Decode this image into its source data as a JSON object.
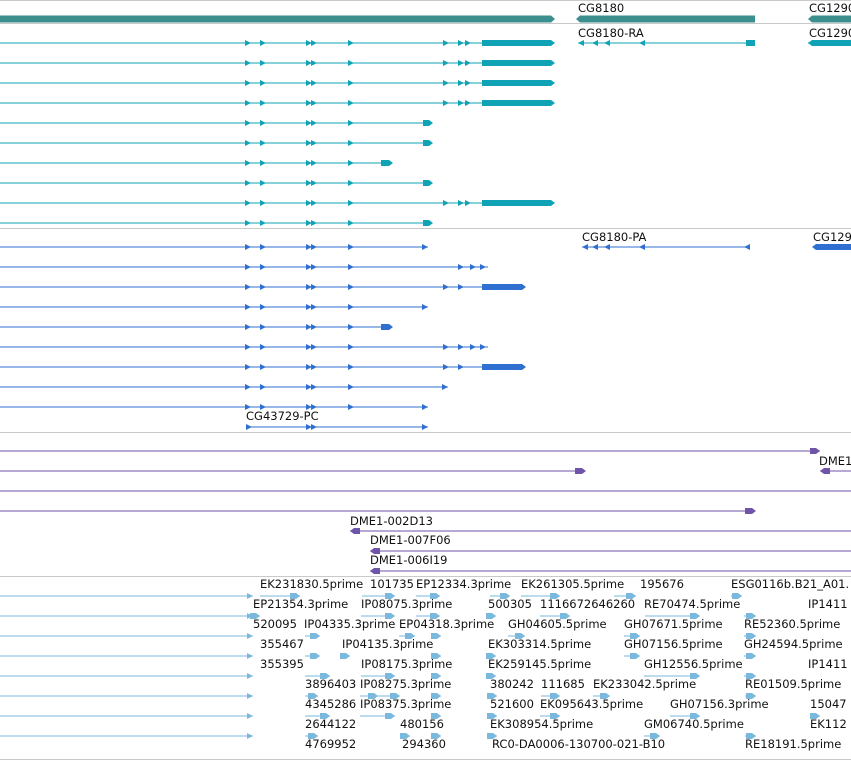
{
  "colors": {
    "gene": "#3b8f8f",
    "rna": "#0fa3b5",
    "protein": "#2f6fd0",
    "clone": "#6e55a8",
    "est": "#7ab8de",
    "separator": "#c9c9c9"
  },
  "tracks": {
    "genes": {
      "labels": [
        "CG8180",
        "CG1290"
      ]
    },
    "transcripts": {
      "labels": [
        "CG8180-RA",
        "CG1290"
      ]
    },
    "proteins": {
      "labels": [
        "CG8180-PA",
        "CG129",
        "CG43729-PC"
      ]
    },
    "clones": {
      "labels": [
        "DME1",
        "DME1-002D13",
        "DME1-007F06",
        "DME1-006I19"
      ]
    },
    "ests": {
      "labels": [
        "EK231830.5prime",
        "101735",
        "EP12334.3prime",
        "EK261305.5prime",
        "195676",
        "ESG0116b.B21_A01.",
        "EP21354.3prime",
        "IP08075.3prime",
        "500305",
        "1116672646260",
        "RE70474.5prime",
        "IP1411",
        "520095",
        "IP04335.3prime",
        "EP04318.3prime",
        "GH04605.5prime",
        "GH07671.5prime",
        "RE52360.5prime",
        "355467",
        "IP04135.3prime",
        "EK303314.5prime",
        "GH07156.5prime",
        "GH24594.5prime",
        "355395",
        "IP08175.3prime",
        "EK259145.5prime",
        "GH12556.5prime",
        "IP1411",
        "3896403",
        "IP08275.3prime",
        "380242",
        "111685",
        "EK233042.5prime",
        "RE01509.5prime",
        "4345286",
        "IP08375.3prime",
        "521600",
        "EK095643.5prime",
        "GH07156.3prime",
        "15047",
        "2644122",
        "480156",
        "EK308954.5prime",
        "GM06740.5prime",
        "EK112",
        "4769952",
        "294360",
        "RC0-DA0006-130700-021-B10",
        "RE18191.5prime"
      ]
    }
  }
}
